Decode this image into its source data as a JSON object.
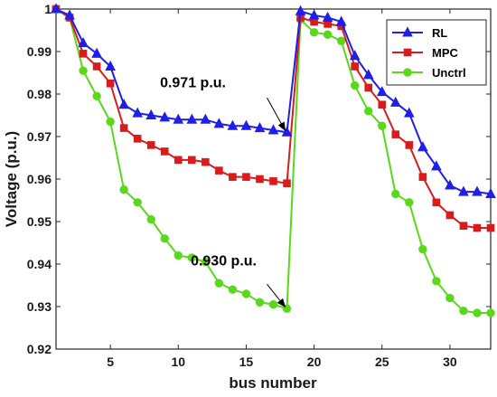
{
  "chart_data": {
    "type": "line",
    "xlabel": "bus number",
    "ylabel": "Voltage (p.u.)",
    "xlim": [
      1,
      33
    ],
    "ylim": [
      0.92,
      1.0
    ],
    "xticks": [
      5,
      10,
      15,
      20,
      25,
      30
    ],
    "yticks": [
      0.92,
      0.93,
      0.94,
      0.95,
      0.96,
      0.97,
      0.98,
      0.99,
      1.0
    ],
    "ytick_labels": [
      "0.92",
      "0.93",
      "0.94",
      "0.95",
      "0.96",
      "0.97",
      "0.98",
      "0.99",
      "1"
    ],
    "grid": false,
    "legend_position": "top-right",
    "x": [
      1,
      2,
      3,
      4,
      5,
      6,
      7,
      8,
      9,
      10,
      11,
      12,
      13,
      14,
      15,
      16,
      17,
      18,
      19,
      20,
      21,
      22,
      23,
      24,
      25,
      26,
      27,
      28,
      29,
      30,
      31,
      32,
      33
    ],
    "series": [
      {
        "name": "RL",
        "color": "#1f1fe6",
        "marker": "triangle",
        "values": [
          1.0,
          0.9985,
          0.992,
          0.9895,
          0.9865,
          0.9775,
          0.9755,
          0.975,
          0.9745,
          0.974,
          0.974,
          0.974,
          0.973,
          0.9725,
          0.9725,
          0.972,
          0.9715,
          0.971,
          0.9995,
          0.9985,
          0.998,
          0.997,
          0.989,
          0.9845,
          0.9805,
          0.978,
          0.9755,
          0.9675,
          0.963,
          0.9585,
          0.957,
          0.957,
          0.9565
        ]
      },
      {
        "name": "MPC",
        "color": "#d81c1c",
        "marker": "square",
        "values": [
          1.0,
          0.998,
          0.9895,
          0.9865,
          0.9825,
          0.972,
          0.9695,
          0.968,
          0.9665,
          0.9645,
          0.9645,
          0.964,
          0.962,
          0.9605,
          0.9605,
          0.96,
          0.9595,
          0.959,
          0.998,
          0.997,
          0.9965,
          0.996,
          0.9865,
          0.9815,
          0.9775,
          0.9705,
          0.968,
          0.9605,
          0.9545,
          0.9515,
          0.949,
          0.9485,
          0.9485
        ]
      },
      {
        "name": "Unctrl",
        "color": "#5ad81c",
        "marker": "circle",
        "values": [
          1.0,
          0.998,
          0.9855,
          0.9795,
          0.9735,
          0.9575,
          0.9545,
          0.9505,
          0.946,
          0.942,
          0.9415,
          0.9405,
          0.9355,
          0.934,
          0.933,
          0.931,
          0.9305,
          0.9295,
          0.9975,
          0.9945,
          0.994,
          0.9925,
          0.982,
          0.976,
          0.9725,
          0.9565,
          0.9545,
          0.9435,
          0.936,
          0.932,
          0.929,
          0.9285,
          0.9285
        ]
      }
    ],
    "annotations": [
      {
        "text": "0.971 p.u.",
        "x": 18,
        "y": 0.971
      },
      {
        "text": "0.930 p.u.",
        "x": 18,
        "y": 0.9295
      }
    ]
  }
}
